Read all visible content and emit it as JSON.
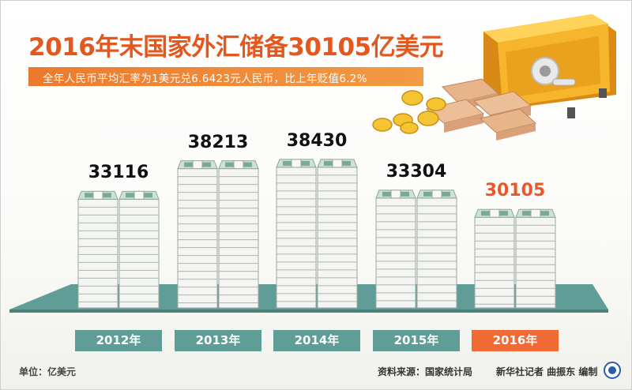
{
  "header": {
    "title": "2016年末国家外汇储备30105亿美元",
    "subtitle": "全年人民币平均汇率为1美元兑6.6423元人民币，比上年贬值6.2%"
  },
  "chart_data": {
    "type": "bar",
    "categories": [
      "2012年",
      "2013年",
      "2014年",
      "2015年",
      "2016年"
    ],
    "values": [
      33116,
      38213,
      38430,
      33304,
      30105
    ],
    "value_labels": [
      "33116",
      "38213",
      "38430",
      "33304",
      "30105"
    ],
    "highlight_index": 4,
    "unit_label": "单位：亿美元"
  },
  "footer": {
    "source": "资料来源：国家统计局",
    "credit": "新华社记者  曲振东  编制"
  },
  "colors": {
    "title": "#e2581f",
    "highlight": "#ef6a35",
    "axis": "#5f9d96",
    "money": "#7aa996"
  },
  "icons": [
    "safe-icon",
    "gold-coin-icon",
    "cash-bundle-icon",
    "xinhua-logo-icon"
  ]
}
